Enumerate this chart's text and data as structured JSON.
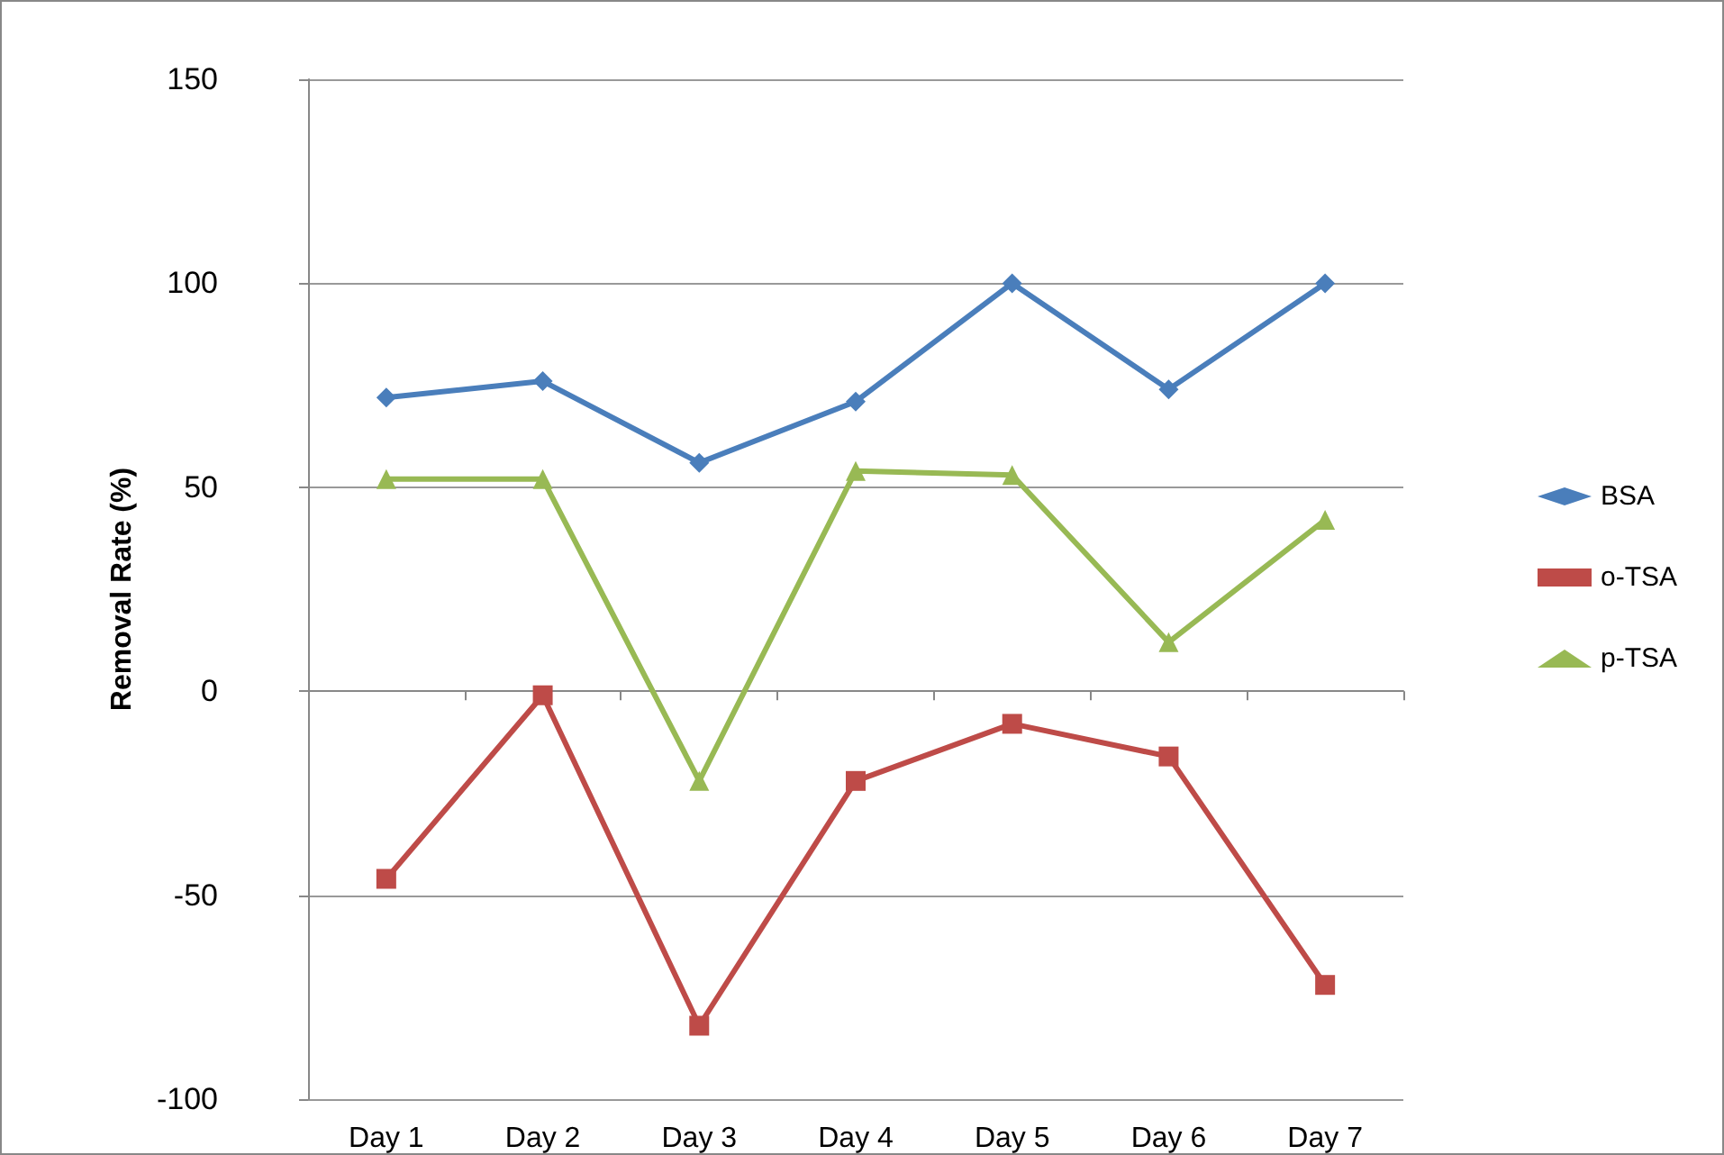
{
  "chart_data": {
    "type": "line",
    "ylabel": "Removal Rate (%)",
    "categories": [
      "Day 1",
      "Day 2",
      "Day 3",
      "Day 4",
      "Day 5",
      "Day 6",
      "Day 7"
    ],
    "series": [
      {
        "name": "BSA",
        "color": "#4a7ebb",
        "marker": "diamond",
        "values": [
          72,
          76,
          56,
          71,
          100,
          74,
          100
        ]
      },
      {
        "name": "o-TSA",
        "color": "#be4b48",
        "marker": "square",
        "values": [
          -46,
          -1,
          -82,
          -22,
          -8,
          -16,
          -72
        ]
      },
      {
        "name": "p-TSA",
        "color": "#98b954",
        "marker": "triangle",
        "values": [
          52,
          52,
          -22,
          54,
          53,
          12,
          42
        ]
      }
    ],
    "ylim": [
      -100,
      150
    ],
    "yticks": [
      -100,
      -50,
      0,
      50,
      100,
      150
    ],
    "grid": "y",
    "legend": "right",
    "line_style": "solid"
  }
}
